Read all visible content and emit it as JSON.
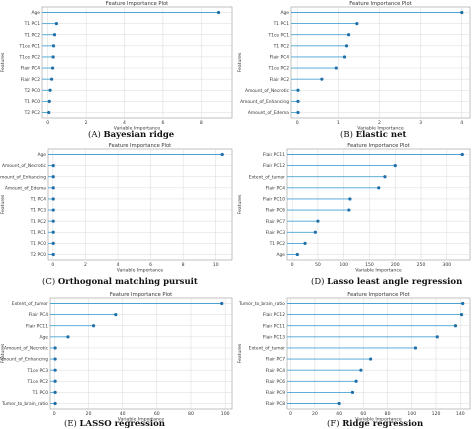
{
  "chart_data": [
    {
      "type": "lollipop",
      "title": "Feature Importance Plot",
      "xlabel": "Variable Importance",
      "ylabel": "Features",
      "caption_label": "(A)",
      "caption_title": "Bayesian ridge",
      "xlim": [
        -0.3,
        9.6
      ],
      "xticks": [
        0,
        2,
        4,
        6,
        8
      ],
      "grid": true,
      "categories": [
        "Age",
        "T1 PC1",
        "T1 PC2",
        "T1ce PC1",
        "T1ce PC2",
        "Flair PC4",
        "Flair PC2",
        "T2 PC0",
        "T1 PC0",
        "T2 PC2"
      ],
      "values": [
        8.9,
        0.45,
        0.35,
        0.3,
        0.28,
        0.25,
        0.2,
        0.12,
        0.08,
        0.05
      ]
    },
    {
      "type": "lollipop",
      "title": "Feature Importance Plot",
      "xlabel": "Variable Importance",
      "ylabel": "Features",
      "caption_label": "(B)",
      "caption_title": "Elastic net",
      "xlim": [
        -0.15,
        4.2
      ],
      "xticks": [
        0,
        1,
        2,
        3,
        4
      ],
      "grid": true,
      "categories": [
        "Age",
        "T1 PC1",
        "T1ce PC1",
        "T1 PC2",
        "Flair PC4",
        "T1ce PC2",
        "Flair PC2",
        "Amount_of_Necrotic",
        "Amount_of_Enhancing",
        "Amount_of_Edema"
      ],
      "values": [
        4.0,
        1.45,
        1.25,
        1.2,
        1.15,
        0.95,
        0.6,
        0.02,
        0.02,
        0.02
      ]
    },
    {
      "type": "lollipop",
      "title": "Feature Importance Plot",
      "xlabel": "Variable Importance",
      "ylabel": "Features",
      "caption_label": "(C)",
      "caption_title": "Orthogonal matching pursuit",
      "xlim": [
        -0.3,
        11
      ],
      "xticks": [
        0,
        2,
        4,
        6,
        8,
        10
      ],
      "grid": true,
      "categories": [
        "Age",
        "Amount_of_Necrotic",
        "Amount_of_Enhancing",
        "Amount_of_Edema",
        "T1 PC4",
        "T1 PC3",
        "T1 PC2",
        "T1 PC1",
        "T1 PC0",
        "T2 PC0"
      ],
      "values": [
        10.4,
        0.02,
        0.02,
        0.02,
        0.02,
        0.02,
        0.02,
        0.02,
        0.02,
        0.02
      ]
    },
    {
      "type": "lollipop",
      "title": "Feature Importance Plot",
      "xlabel": "Variable Importance",
      "ylabel": "Features",
      "caption_label": "(D)",
      "caption_title": "Lasso least angle regression",
      "xlim": [
        -10,
        345
      ],
      "xticks": [
        0,
        50,
        100,
        150,
        200,
        250,
        300
      ],
      "grid": true,
      "categories": [
        "Flair PC11",
        "Flair PC12",
        "Extent_of_tumor",
        "Flair PC4",
        "Flair PC10",
        "Flair PC6",
        "Flair PC7",
        "Flair PC3",
        "T1 PC2",
        "Age"
      ],
      "values": [
        330,
        200,
        180,
        168,
        112,
        110,
        50,
        45,
        25,
        10
      ]
    },
    {
      "type": "lollipop",
      "title": "Feature Importance Plot",
      "xlabel": "Variable Importance",
      "ylabel": "Features",
      "caption_label": "(E)",
      "caption_title": "LASSO regression",
      "xlim": [
        -2.5,
        104
      ],
      "xticks": [
        0,
        20,
        40,
        60,
        80,
        100
      ],
      "grid": true,
      "categories": [
        "Extent_of_tumor",
        "Flair PC4",
        "Flair PC11",
        "Age",
        "Amount_of_Necrotic",
        "Amount_of_Enhancing",
        "T1ce PC3",
        "T1ce PC2",
        "T1 PC0",
        "Tumor_to_brain_ratio"
      ],
      "values": [
        98,
        36,
        23,
        8,
        0.5,
        0.5,
        0.5,
        0.5,
        0.5,
        0.5
      ]
    },
    {
      "type": "lollipop",
      "title": "Feature Importance Plot",
      "xlabel": "Variable Importance",
      "ylabel": "Features",
      "caption_label": "(F)",
      "caption_title": "Ridge regression",
      "xlim": [
        -3,
        148
      ],
      "xticks": [
        0,
        20,
        40,
        60,
        80,
        100,
        120,
        140
      ],
      "grid": true,
      "categories": [
        "Tumor_to_brain_ratio",
        "Flair PC12",
        "Flair PC11",
        "Flair PC13",
        "Extent_of_tumor",
        "Flair PC7",
        "Flair PC4",
        "Flair PC6",
        "Flair PC9",
        "Flair PC8"
      ],
      "values": [
        142,
        141,
        136,
        121,
        103,
        66,
        58,
        54,
        51,
        40
      ]
    }
  ],
  "colors": {
    "stem": "#4aa3d4",
    "dot": "#1f6fa8",
    "grid": "#d9d9d9",
    "frame": "#9a9a9a",
    "text": "#333333"
  }
}
